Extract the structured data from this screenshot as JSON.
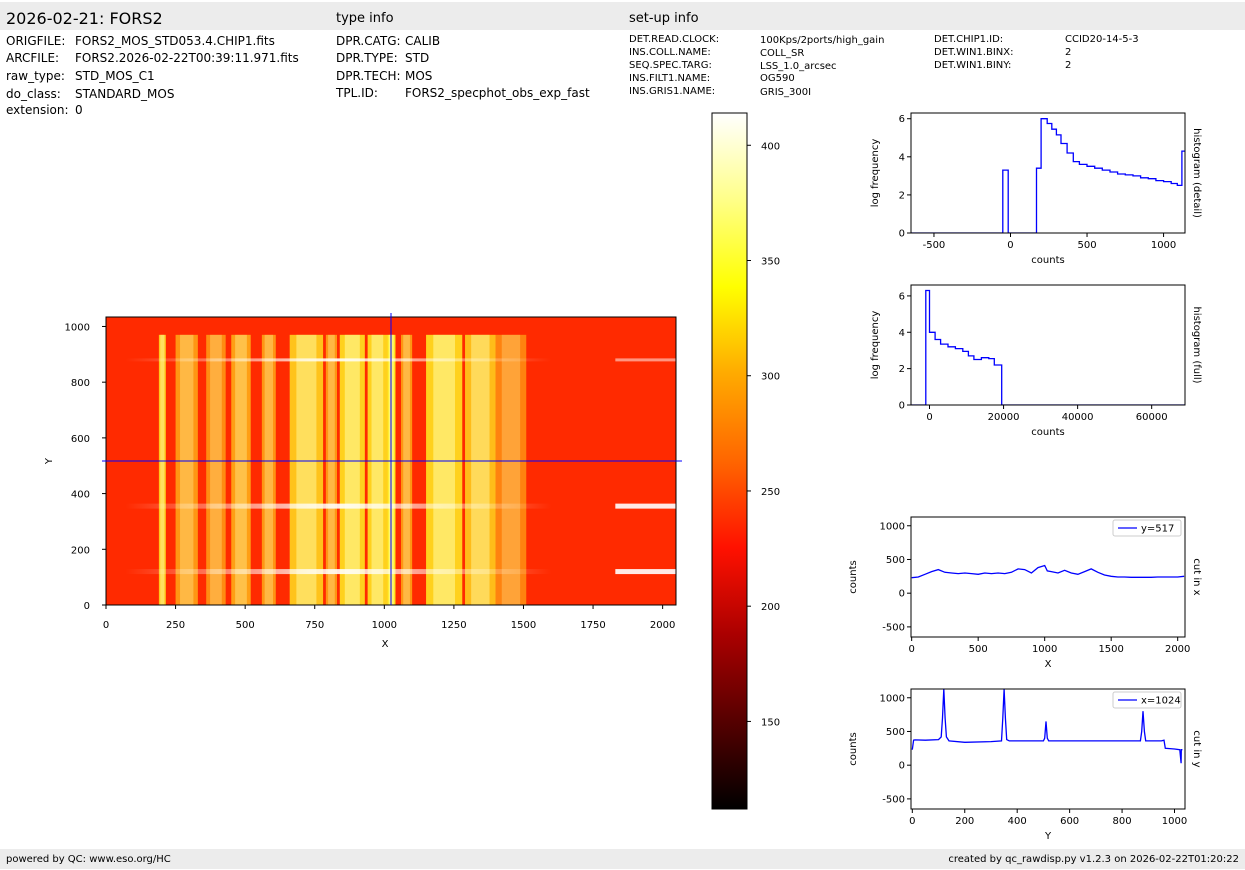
{
  "header": {
    "title": "2026-02-21: FORS2",
    "type_info_label": "type info",
    "setup_info_label": "set-up info"
  },
  "file_info": [
    {
      "key": "ORIGFILE:",
      "value": "FORS2_MOS_STD053.4.CHIP1.fits"
    },
    {
      "key": "ARCFILE:",
      "value": "FORS2.2026-02-22T00:39:11.971.fits"
    },
    {
      "key": "raw_type:",
      "value": "STD_MOS_C1"
    },
    {
      "key": "do_class:",
      "value": "STANDARD_MOS"
    },
    {
      "key": "extension:",
      "value": "0"
    }
  ],
  "type_info": [
    {
      "key": "DPR.CATG:",
      "value": "CALIB"
    },
    {
      "key": "DPR.TYPE:",
      "value": "STD"
    },
    {
      "key": "DPR.TECH:",
      "value": "MOS"
    },
    {
      "key": "TPL.ID:",
      "value": "FORS2_specphot_obs_exp_fast"
    }
  ],
  "setup_info_col1": [
    {
      "key": "DET.READ.CLOCK:",
      "value": "100Kps/2ports/high_gain"
    },
    {
      "key": "INS.COLL.NAME:",
      "value": "COLL_SR"
    },
    {
      "key": "SEQ.SPEC.TARG:",
      "value": "LSS_1.0_arcsec"
    },
    {
      "key": "INS.FILT1.NAME:",
      "value": "OG590"
    },
    {
      "key": "INS.GRIS1.NAME:",
      "value": "GRIS_300I"
    }
  ],
  "setup_info_col2": [
    {
      "key": "DET.CHIP1.ID:",
      "value": "CCID20-14-5-3"
    },
    {
      "key": "DET.WIN1.BINX:",
      "value": "2"
    },
    {
      "key": "DET.WIN1.BINY:",
      "value": "2"
    }
  ],
  "footer": {
    "left": "powered by QC: www.eso.org/HC",
    "right": "created by qc_rawdisp.py v1.2.3 on 2026-02-22T01:20:22"
  },
  "colors": {
    "line": "#0000ff",
    "bar_bg": "#ececec",
    "colormap": [
      "#000000",
      "#550000",
      "#aa0000",
      "#ff1100",
      "#ff6600",
      "#ffaa00",
      "#ffff00",
      "#ffff88",
      "#ffffff"
    ]
  },
  "chart_data": [
    {
      "type": "heatmap",
      "id": "image",
      "xlabel": "X",
      "ylabel": "Y",
      "xlim": [
        0,
        2048
      ],
      "ylim": [
        0,
        1034
      ],
      "xticks": [
        0,
        250,
        500,
        750,
        1000,
        1250,
        1500,
        1750,
        2000
      ],
      "yticks": [
        0,
        200,
        400,
        600,
        800,
        1000
      ],
      "crosshair": {
        "x": 1024,
        "y": 517
      },
      "colorbar": {
        "vmin": 112,
        "vmax": 414,
        "ticks": [
          150,
          200,
          250,
          300,
          350,
          400
        ]
      },
      "horizontal_spectra_y": [
        120,
        355,
        880
      ],
      "slit_columns": [
        {
          "x0": 190,
          "x1": 215,
          "level": 0.8
        },
        {
          "x0": 250,
          "x1": 330,
          "level": 0.55
        },
        {
          "x0": 360,
          "x1": 430,
          "level": 0.5
        },
        {
          "x0": 450,
          "x1": 520,
          "level": 0.6
        },
        {
          "x0": 560,
          "x1": 610,
          "level": 0.55
        },
        {
          "x0": 660,
          "x1": 780,
          "level": 0.78
        },
        {
          "x0": 790,
          "x1": 830,
          "level": 0.55
        },
        {
          "x0": 840,
          "x1": 930,
          "level": 0.85
        },
        {
          "x0": 940,
          "x1": 1010,
          "level": 0.85
        },
        {
          "x0": 1010,
          "x1": 1040,
          "level": 0.98
        },
        {
          "x0": 1060,
          "x1": 1100,
          "level": 0.55
        },
        {
          "x0": 1150,
          "x1": 1280,
          "level": 0.85
        },
        {
          "x0": 1290,
          "x1": 1400,
          "level": 0.75
        },
        {
          "x0": 1400,
          "x1": 1510,
          "level": 0.45
        }
      ]
    },
    {
      "type": "line",
      "id": "hist_detail",
      "xlabel": "counts",
      "ylabel": "log frequency",
      "side_label": "histogram (detail)",
      "xlim": [
        -650,
        1140
      ],
      "ylim": [
        0,
        6.3
      ],
      "xticks": [
        -500,
        0,
        500,
        1000
      ],
      "yticks": [
        0,
        2,
        4,
        6
      ],
      "x": [
        -650,
        -50,
        -50,
        -15,
        -15,
        170,
        170,
        200,
        200,
        240,
        240,
        270,
        270,
        300,
        300,
        330,
        330,
        370,
        370,
        410,
        410,
        450,
        450,
        500,
        500,
        550,
        550,
        600,
        600,
        650,
        650,
        700,
        700,
        750,
        750,
        800,
        800,
        850,
        850,
        900,
        900,
        950,
        950,
        1000,
        1000,
        1050,
        1050,
        1090,
        1090,
        1120,
        1120,
        1140
      ],
      "y": [
        0,
        0,
        3.3,
        3.3,
        0,
        0,
        3.4,
        3.4,
        6.0,
        6.0,
        5.75,
        5.75,
        5.45,
        5.45,
        5.15,
        5.15,
        4.7,
        4.7,
        4.2,
        4.2,
        3.75,
        3.75,
        3.6,
        3.6,
        3.5,
        3.5,
        3.4,
        3.4,
        3.3,
        3.3,
        3.2,
        3.2,
        3.1,
        3.1,
        3.05,
        3.05,
        3.0,
        3.0,
        2.9,
        2.9,
        2.85,
        2.85,
        2.75,
        2.75,
        2.7,
        2.7,
        2.6,
        2.6,
        2.5,
        2.5,
        4.3,
        4.3
      ]
    },
    {
      "type": "line",
      "id": "hist_full",
      "xlabel": "counts",
      "ylabel": "log frequency",
      "side_label": "histogram (full)",
      "xlim": [
        -5000,
        69000
      ],
      "ylim": [
        0,
        6.6
      ],
      "xticks": [
        0,
        20000,
        40000,
        60000
      ],
      "yticks": [
        0,
        2,
        4,
        6
      ],
      "x": [
        -5000,
        -1000,
        -1000,
        0,
        0,
        1500,
        1500,
        3000,
        3000,
        5000,
        5000,
        7000,
        7000,
        9000,
        9000,
        10500,
        10500,
        12000,
        12000,
        14000,
        14000,
        16000,
        16000,
        17500,
        17500,
        19500,
        19500,
        69000
      ],
      "y": [
        0,
        0,
        6.3,
        6.3,
        4.0,
        4.0,
        3.6,
        3.6,
        3.35,
        3.35,
        3.2,
        3.2,
        3.1,
        3.1,
        2.95,
        2.95,
        2.7,
        2.7,
        2.5,
        2.5,
        2.6,
        2.6,
        2.55,
        2.55,
        2.2,
        2.2,
        0,
        0
      ]
    },
    {
      "type": "line",
      "id": "cut_x",
      "xlabel": "X",
      "ylabel": "counts",
      "side_label": "cut in x",
      "legend": "y=517",
      "legend_position": "top-right",
      "xlim": [
        -5,
        2055
      ],
      "ylim": [
        -650,
        1130
      ],
      "xticks": [
        0,
        500,
        1000,
        1500,
        2000
      ],
      "yticks": [
        -500,
        0,
        500,
        1000
      ],
      "x": [
        0,
        50,
        100,
        150,
        200,
        250,
        300,
        350,
        400,
        450,
        500,
        550,
        600,
        650,
        700,
        750,
        800,
        850,
        900,
        950,
        1000,
        1020,
        1050,
        1100,
        1150,
        1200,
        1250,
        1300,
        1350,
        1400,
        1450,
        1500,
        1550,
        1600,
        1650,
        1700,
        1750,
        1800,
        1850,
        1900,
        1950,
        2000,
        2048
      ],
      "y": [
        230,
        240,
        280,
        320,
        350,
        310,
        300,
        290,
        300,
        290,
        280,
        300,
        290,
        300,
        290,
        310,
        360,
        350,
        300,
        380,
        410,
        330,
        320,
        300,
        340,
        300,
        280,
        320,
        360,
        310,
        270,
        250,
        240,
        240,
        235,
        235,
        235,
        235,
        240,
        240,
        240,
        240,
        250
      ]
    },
    {
      "type": "line",
      "id": "cut_y",
      "xlabel": "Y",
      "ylabel": "counts",
      "side_label": "cut in y",
      "legend": "x=1024",
      "legend_position": "top-right",
      "xlim": [
        -5,
        1040
      ],
      "ylim": [
        -650,
        1130
      ],
      "xticks": [
        0,
        200,
        400,
        600,
        800,
        1000
      ],
      "yticks": [
        -500,
        0,
        500,
        1000
      ],
      "x": [
        0,
        5,
        10,
        50,
        100,
        110,
        115,
        120,
        125,
        130,
        140,
        200,
        300,
        340,
        345,
        350,
        355,
        360,
        370,
        500,
        505,
        510,
        515,
        520,
        600,
        700,
        800,
        870,
        875,
        880,
        885,
        890,
        950,
        960,
        965,
        1000,
        1020,
        1025,
        1026,
        1030
      ],
      "y": [
        230,
        370,
        375,
        370,
        380,
        420,
        700,
        1130,
        700,
        420,
        360,
        340,
        350,
        360,
        700,
        1130,
        700,
        380,
        360,
        360,
        400,
        650,
        400,
        360,
        360,
        360,
        360,
        360,
        500,
        800,
        500,
        360,
        360,
        370,
        250,
        240,
        230,
        30,
        230,
        230
      ]
    }
  ]
}
